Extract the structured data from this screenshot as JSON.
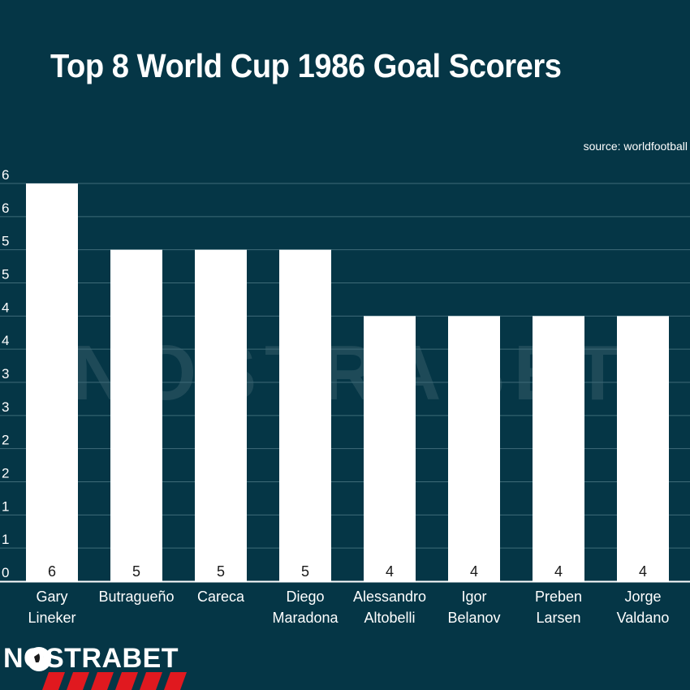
{
  "chart_data": {
    "type": "bar",
    "title": "Top 8 World Cup 1986 Goal Scorers",
    "source": "source: worldfootball",
    "categories": [
      [
        "Gary",
        "Lineker"
      ],
      [
        "Butragueño"
      ],
      [
        "Careca"
      ],
      [
        "Diego",
        "Maradona"
      ],
      [
        "Alessandro",
        "Altobelli"
      ],
      [
        "Igor",
        "Belanov"
      ],
      [
        "Preben",
        "Larsen"
      ],
      [
        "Jorge",
        "Valdano"
      ]
    ],
    "values": [
      6,
      5,
      5,
      5,
      4,
      4,
      4,
      4
    ],
    "y_ticks": [
      "0",
      "1",
      "1",
      "2",
      "2",
      "3",
      "3",
      "4",
      "4",
      "5",
      "5",
      "6",
      "6"
    ],
    "ylim": [
      0,
      6
    ],
    "grid": true,
    "colors": {
      "background": "#053646",
      "bar": "#ffffff",
      "grid": "#3f6b78",
      "label": "#ffffff",
      "value_label": "#1a1a1a",
      "logo_stripe": "#e0191f"
    }
  },
  "watermark": "NOSTRABET",
  "logo": "NOSTRABET"
}
